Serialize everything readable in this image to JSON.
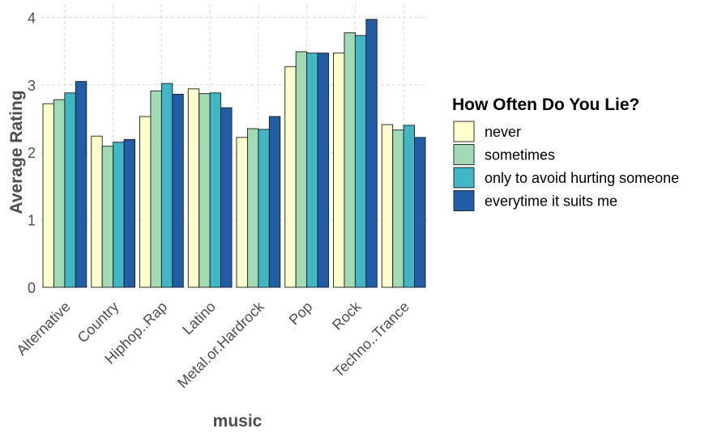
{
  "chart_data": {
    "type": "bar",
    "title": "",
    "xlabel": "music",
    "ylabel": "Average Rating",
    "ylim": [
      0,
      4.2
    ],
    "yticks": [
      0,
      1,
      2,
      3,
      4
    ],
    "grid": true,
    "legend_title": "How Often Do You Lie?",
    "legend_position": "right",
    "categories": [
      "Alternative",
      "Country",
      "Hiphop..Rap",
      "Latino",
      "Metal.or.Hardrock",
      "Pop",
      "Rock",
      "Techno..Trance"
    ],
    "series": [
      {
        "name": "never",
        "color": "#ffffcc",
        "values": [
          2.72,
          2.24,
          2.53,
          2.94,
          2.22,
          3.27,
          3.47,
          2.41
        ]
      },
      {
        "name": "sometimes",
        "color": "#a1dab4",
        "values": [
          2.78,
          2.09,
          2.91,
          2.87,
          2.35,
          3.49,
          3.77,
          2.33
        ]
      },
      {
        "name": "only to avoid hurting someone",
        "color": "#41b6c4",
        "values": [
          2.88,
          2.15,
          3.02,
          2.88,
          2.34,
          3.47,
          3.73,
          2.4
        ]
      },
      {
        "name": "everytime it suits me",
        "color": "#225ea8",
        "values": [
          3.05,
          2.19,
          2.86,
          2.66,
          2.53,
          3.47,
          3.97,
          2.22
        ]
      }
    ]
  }
}
